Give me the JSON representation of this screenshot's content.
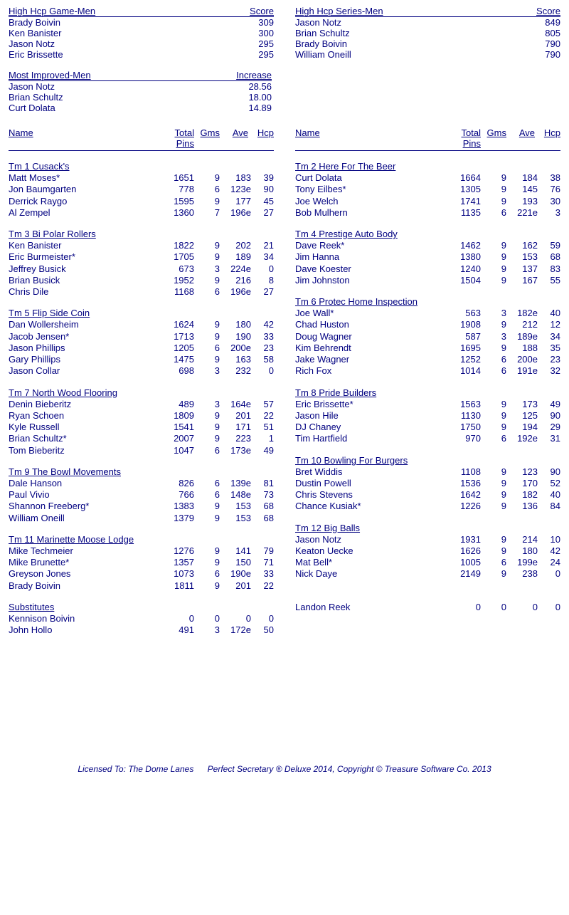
{
  "colors": {
    "text": "#000080",
    "bg": "#ffffff"
  },
  "topBlocks": [
    {
      "title": "High Hcp Game-Men",
      "valueLabel": "Score",
      "rows": [
        {
          "name": "Brady Boivin",
          "value": "309"
        },
        {
          "name": "Ken Banister",
          "value": "300"
        },
        {
          "name": "Jason Notz",
          "value": "295"
        },
        {
          "name": "Eric Brissette",
          "value": "295"
        }
      ]
    },
    {
      "title": "High Hcp Series-Men",
      "valueLabel": "Score",
      "rows": [
        {
          "name": "Jason Notz",
          "value": "849"
        },
        {
          "name": "Brian Schultz",
          "value": "805"
        },
        {
          "name": "Brady Boivin",
          "value": "790"
        },
        {
          "name": "William Oneill",
          "value": "790"
        }
      ]
    }
  ],
  "improvedBlock": {
    "title": "Most Improved-Men",
    "valueLabel": "Increase",
    "rows": [
      {
        "name": "Jason Notz",
        "value": "28.56"
      },
      {
        "name": "Brian Schultz",
        "value": "18.00"
      },
      {
        "name": "Curt Dolata",
        "value": "14.89"
      }
    ]
  },
  "statsHead": {
    "name": "Name",
    "totalPins1": "Total",
    "totalPins2": "Pins",
    "gms": "Gms",
    "ave": "Ave",
    "hcp": "Hcp"
  },
  "leftTeams": [
    {
      "name": "Tm 1 Cusack's",
      "players": [
        {
          "n": "Matt Moses*",
          "p": "1651",
          "g": "9",
          "a": "183",
          "h": "39"
        },
        {
          "n": "Jon Baumgarten",
          "p": "778",
          "g": "6",
          "a": "123e",
          "h": "90"
        },
        {
          "n": "Derrick Raygo",
          "p": "1595",
          "g": "9",
          "a": "177",
          "h": "45"
        },
        {
          "n": "Al Zempel",
          "p": "1360",
          "g": "7",
          "a": "196e",
          "h": "27"
        }
      ]
    },
    {
      "name": "Tm 3 Bi Polar Rollers",
      "players": [
        {
          "n": "Ken Banister",
          "p": "1822",
          "g": "9",
          "a": "202",
          "h": "21"
        },
        {
          "n": "Eric Burmeister*",
          "p": "1705",
          "g": "9",
          "a": "189",
          "h": "34"
        },
        {
          "n": "Jeffrey Busick",
          "p": "673",
          "g": "3",
          "a": "224e",
          "h": "0"
        },
        {
          "n": "Brian Busick",
          "p": "1952",
          "g": "9",
          "a": "216",
          "h": "8"
        },
        {
          "n": "Chris Dile",
          "p": "1168",
          "g": "6",
          "a": "196e",
          "h": "27"
        }
      ]
    },
    {
      "name": "Tm 5 Flip Side Coin",
      "players": [
        {
          "n": "Dan Wollersheim",
          "p": "1624",
          "g": "9",
          "a": "180",
          "h": "42"
        },
        {
          "n": "Jacob Jensen*",
          "p": "1713",
          "g": "9",
          "a": "190",
          "h": "33"
        },
        {
          "n": "Jason Phillips",
          "p": "1205",
          "g": "6",
          "a": "200e",
          "h": "23"
        },
        {
          "n": "Gary Phillips",
          "p": "1475",
          "g": "9",
          "a": "163",
          "h": "58"
        },
        {
          "n": "Jason Collar",
          "p": "698",
          "g": "3",
          "a": "232",
          "h": "0"
        }
      ]
    },
    {
      "name": "Tm 7 North Wood Flooring",
      "players": [
        {
          "n": "Denin Bieberitz",
          "p": "489",
          "g": "3",
          "a": "164e",
          "h": "57"
        },
        {
          "n": "Ryan Schoen",
          "p": "1809",
          "g": "9",
          "a": "201",
          "h": "22"
        },
        {
          "n": "Kyle Russell",
          "p": "1541",
          "g": "9",
          "a": "171",
          "h": "51"
        },
        {
          "n": "Brian Schultz*",
          "p": "2007",
          "g": "9",
          "a": "223",
          "h": "1"
        },
        {
          "n": "Tom Bieberitz",
          "p": "1047",
          "g": "6",
          "a": "173e",
          "h": "49"
        }
      ]
    },
    {
      "name": "Tm 9 The Bowl Movements",
      "players": [
        {
          "n": "Dale Hanson",
          "p": "826",
          "g": "6",
          "a": "139e",
          "h": "81"
        },
        {
          "n": "Paul Vivio",
          "p": "766",
          "g": "6",
          "a": "148e",
          "h": "73"
        },
        {
          "n": "Shannon Freeberg*",
          "p": "1383",
          "g": "9",
          "a": "153",
          "h": "68"
        },
        {
          "n": "William Oneill",
          "p": "1379",
          "g": "9",
          "a": "153",
          "h": "68"
        }
      ]
    },
    {
      "name": "Tm 11 Marinette Moose Lodge",
      "players": [
        {
          "n": "Mike Techmeier",
          "p": "1276",
          "g": "9",
          "a": "141",
          "h": "79"
        },
        {
          "n": "Mike Brunette*",
          "p": "1357",
          "g": "9",
          "a": "150",
          "h": "71"
        },
        {
          "n": "Greyson Jones",
          "p": "1073",
          "g": "6",
          "a": "190e",
          "h": "33"
        },
        {
          "n": "Brady Boivin",
          "p": "1811",
          "g": "9",
          "a": "201",
          "h": "22"
        }
      ]
    },
    {
      "name": "Substitutes",
      "players": [
        {
          "n": "Kennison Boivin",
          "p": "0",
          "g": "0",
          "a": "0",
          "h": "0"
        },
        {
          "n": "John Hollo",
          "p": "491",
          "g": "3",
          "a": "172e",
          "h": "50"
        }
      ]
    }
  ],
  "rightTeams": [
    {
      "name": "Tm 2 Here For The Beer",
      "players": [
        {
          "n": "Curt Dolata",
          "p": "1664",
          "g": "9",
          "a": "184",
          "h": "38"
        },
        {
          "n": "Tony Eilbes*",
          "p": "1305",
          "g": "9",
          "a": "145",
          "h": "76"
        },
        {
          "n": "Joe Welch",
          "p": "1741",
          "g": "9",
          "a": "193",
          "h": "30"
        },
        {
          "n": "Bob Mulhern",
          "p": "1135",
          "g": "6",
          "a": "221e",
          "h": "3"
        }
      ]
    },
    {
      "name": "Tm 4 Prestige Auto Body",
      "players": [
        {
          "n": "Dave Reek*",
          "p": "1462",
          "g": "9",
          "a": "162",
          "h": "59"
        },
        {
          "n": "Jim Hanna",
          "p": "1380",
          "g": "9",
          "a": "153",
          "h": "68"
        },
        {
          "n": "Dave Koester",
          "p": "1240",
          "g": "9",
          "a": "137",
          "h": "83"
        },
        {
          "n": "Jim Johnston",
          "p": "1504",
          "g": "9",
          "a": "167",
          "h": "55"
        }
      ]
    },
    {
      "name": "Tm 6 Protec Home Inspection",
      "players": [
        {
          "n": "Joe Wall*",
          "p": "563",
          "g": "3",
          "a": "182e",
          "h": "40"
        },
        {
          "n": "Chad Huston",
          "p": "1908",
          "g": "9",
          "a": "212",
          "h": "12"
        },
        {
          "n": "Doug Wagner",
          "p": "587",
          "g": "3",
          "a": "189e",
          "h": "34"
        },
        {
          "n": "Kim Behrendt",
          "p": "1695",
          "g": "9",
          "a": "188",
          "h": "35"
        },
        {
          "n": "Jake Wagner",
          "p": "1252",
          "g": "6",
          "a": "200e",
          "h": "23"
        },
        {
          "n": "Rich Fox",
          "p": "1014",
          "g": "6",
          "a": "191e",
          "h": "32"
        }
      ]
    },
    {
      "name": "Tm 8 Pride Builders",
      "players": [
        {
          "n": "Eric Brissette*",
          "p": "1563",
          "g": "9",
          "a": "173",
          "h": "49"
        },
        {
          "n": "Jason Hile",
          "p": "1130",
          "g": "9",
          "a": "125",
          "h": "90"
        },
        {
          "n": "DJ Chaney",
          "p": "1750",
          "g": "9",
          "a": "194",
          "h": "29"
        },
        {
          "n": "Tim Hartfield",
          "p": "970",
          "g": "6",
          "a": "192e",
          "h": "31"
        }
      ]
    },
    {
      "name": "Tm 10 Bowling For Burgers",
      "players": [
        {
          "n": "Bret Widdis",
          "p": "1108",
          "g": "9",
          "a": "123",
          "h": "90"
        },
        {
          "n": "Dustin Powell",
          "p": "1536",
          "g": "9",
          "a": "170",
          "h": "52"
        },
        {
          "n": "Chris Stevens",
          "p": "1642",
          "g": "9",
          "a": "182",
          "h": "40"
        },
        {
          "n": "Chance Kusiak*",
          "p": "1226",
          "g": "9",
          "a": "136",
          "h": "84"
        }
      ]
    },
    {
      "name": "Tm 12 Big Balls",
      "players": [
        {
          "n": "Jason Notz",
          "p": "1931",
          "g": "9",
          "a": "214",
          "h": "10"
        },
        {
          "n": "Keaton Uecke",
          "p": "1626",
          "g": "9",
          "a": "180",
          "h": "42"
        },
        {
          "n": "Mat Bell*",
          "p": "1005",
          "g": "6",
          "a": "199e",
          "h": "24"
        },
        {
          "n": "Nick Daye",
          "p": "2149",
          "g": "9",
          "a": "238",
          "h": "0"
        }
      ]
    },
    {
      "name": "",
      "players": [
        {
          "n": "Landon Reek",
          "p": "0",
          "g": "0",
          "a": "0",
          "h": "0"
        }
      ]
    }
  ],
  "footer": {
    "licensed": "Licensed To: The Dome Lanes",
    "copyright": "Perfect Secretary ® Deluxe  2014, Copyright © Treasure Software Co. 2013"
  }
}
